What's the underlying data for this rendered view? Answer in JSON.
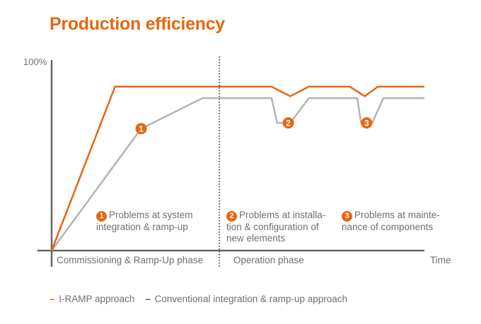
{
  "chart_data": {
    "type": "line",
    "title": "Production efficiency",
    "ylabel": "100%",
    "xlabel": "Time",
    "xlim": [
      0,
      100
    ],
    "ylim": [
      0,
      100
    ],
    "phases": [
      {
        "label": "Commissioning & Ramp-Up phase",
        "start": 0,
        "end": 45
      },
      {
        "label": "Operation phase",
        "start": 45,
        "end": 100
      }
    ],
    "phase_divider_x": 45,
    "series": [
      {
        "name": "I-RAMP approach",
        "color": "#e8660f",
        "points": [
          [
            0,
            0
          ],
          [
            17,
            86
          ],
          [
            59,
            86
          ],
          [
            64,
            81
          ],
          [
            69,
            86
          ],
          [
            80,
            86
          ],
          [
            84,
            81
          ],
          [
            87.5,
            86
          ],
          [
            100,
            86
          ]
        ]
      },
      {
        "name": "Conventional integration & ramp-up approach",
        "color": "#b3b3b3",
        "points": [
          [
            0,
            0
          ],
          [
            24,
            64
          ],
          [
            40.5,
            80
          ],
          [
            59,
            80
          ],
          [
            60.5,
            67
          ],
          [
            64,
            67
          ],
          [
            69,
            80
          ],
          [
            82,
            80
          ],
          [
            83,
            67
          ],
          [
            86,
            67
          ],
          [
            89,
            80
          ],
          [
            100,
            80
          ]
        ]
      }
    ],
    "markers": [
      {
        "label": "1",
        "series": 1,
        "x": 24,
        "y": 64
      },
      {
        "label": "2",
        "series": 1,
        "x": 63.5,
        "y": 67
      },
      {
        "label": "3",
        "series": 1,
        "x": 84.5,
        "y": 67
      }
    ],
    "annotations": [
      {
        "number": "1",
        "lines": [
          "Problems at system",
          "integration & ramp-up"
        ]
      },
      {
        "number": "2",
        "lines": [
          "Problems at installa-",
          "tion & configuration of",
          "new elements"
        ]
      },
      {
        "number": "3",
        "lines": [
          "Problems at mainte-",
          "nance of components"
        ]
      }
    ],
    "legend": [
      {
        "label": "I-RAMP approach",
        "color": "#e8660f"
      },
      {
        "label": "Conventional integration & ramp-up approach",
        "color": "#555555"
      }
    ]
  }
}
